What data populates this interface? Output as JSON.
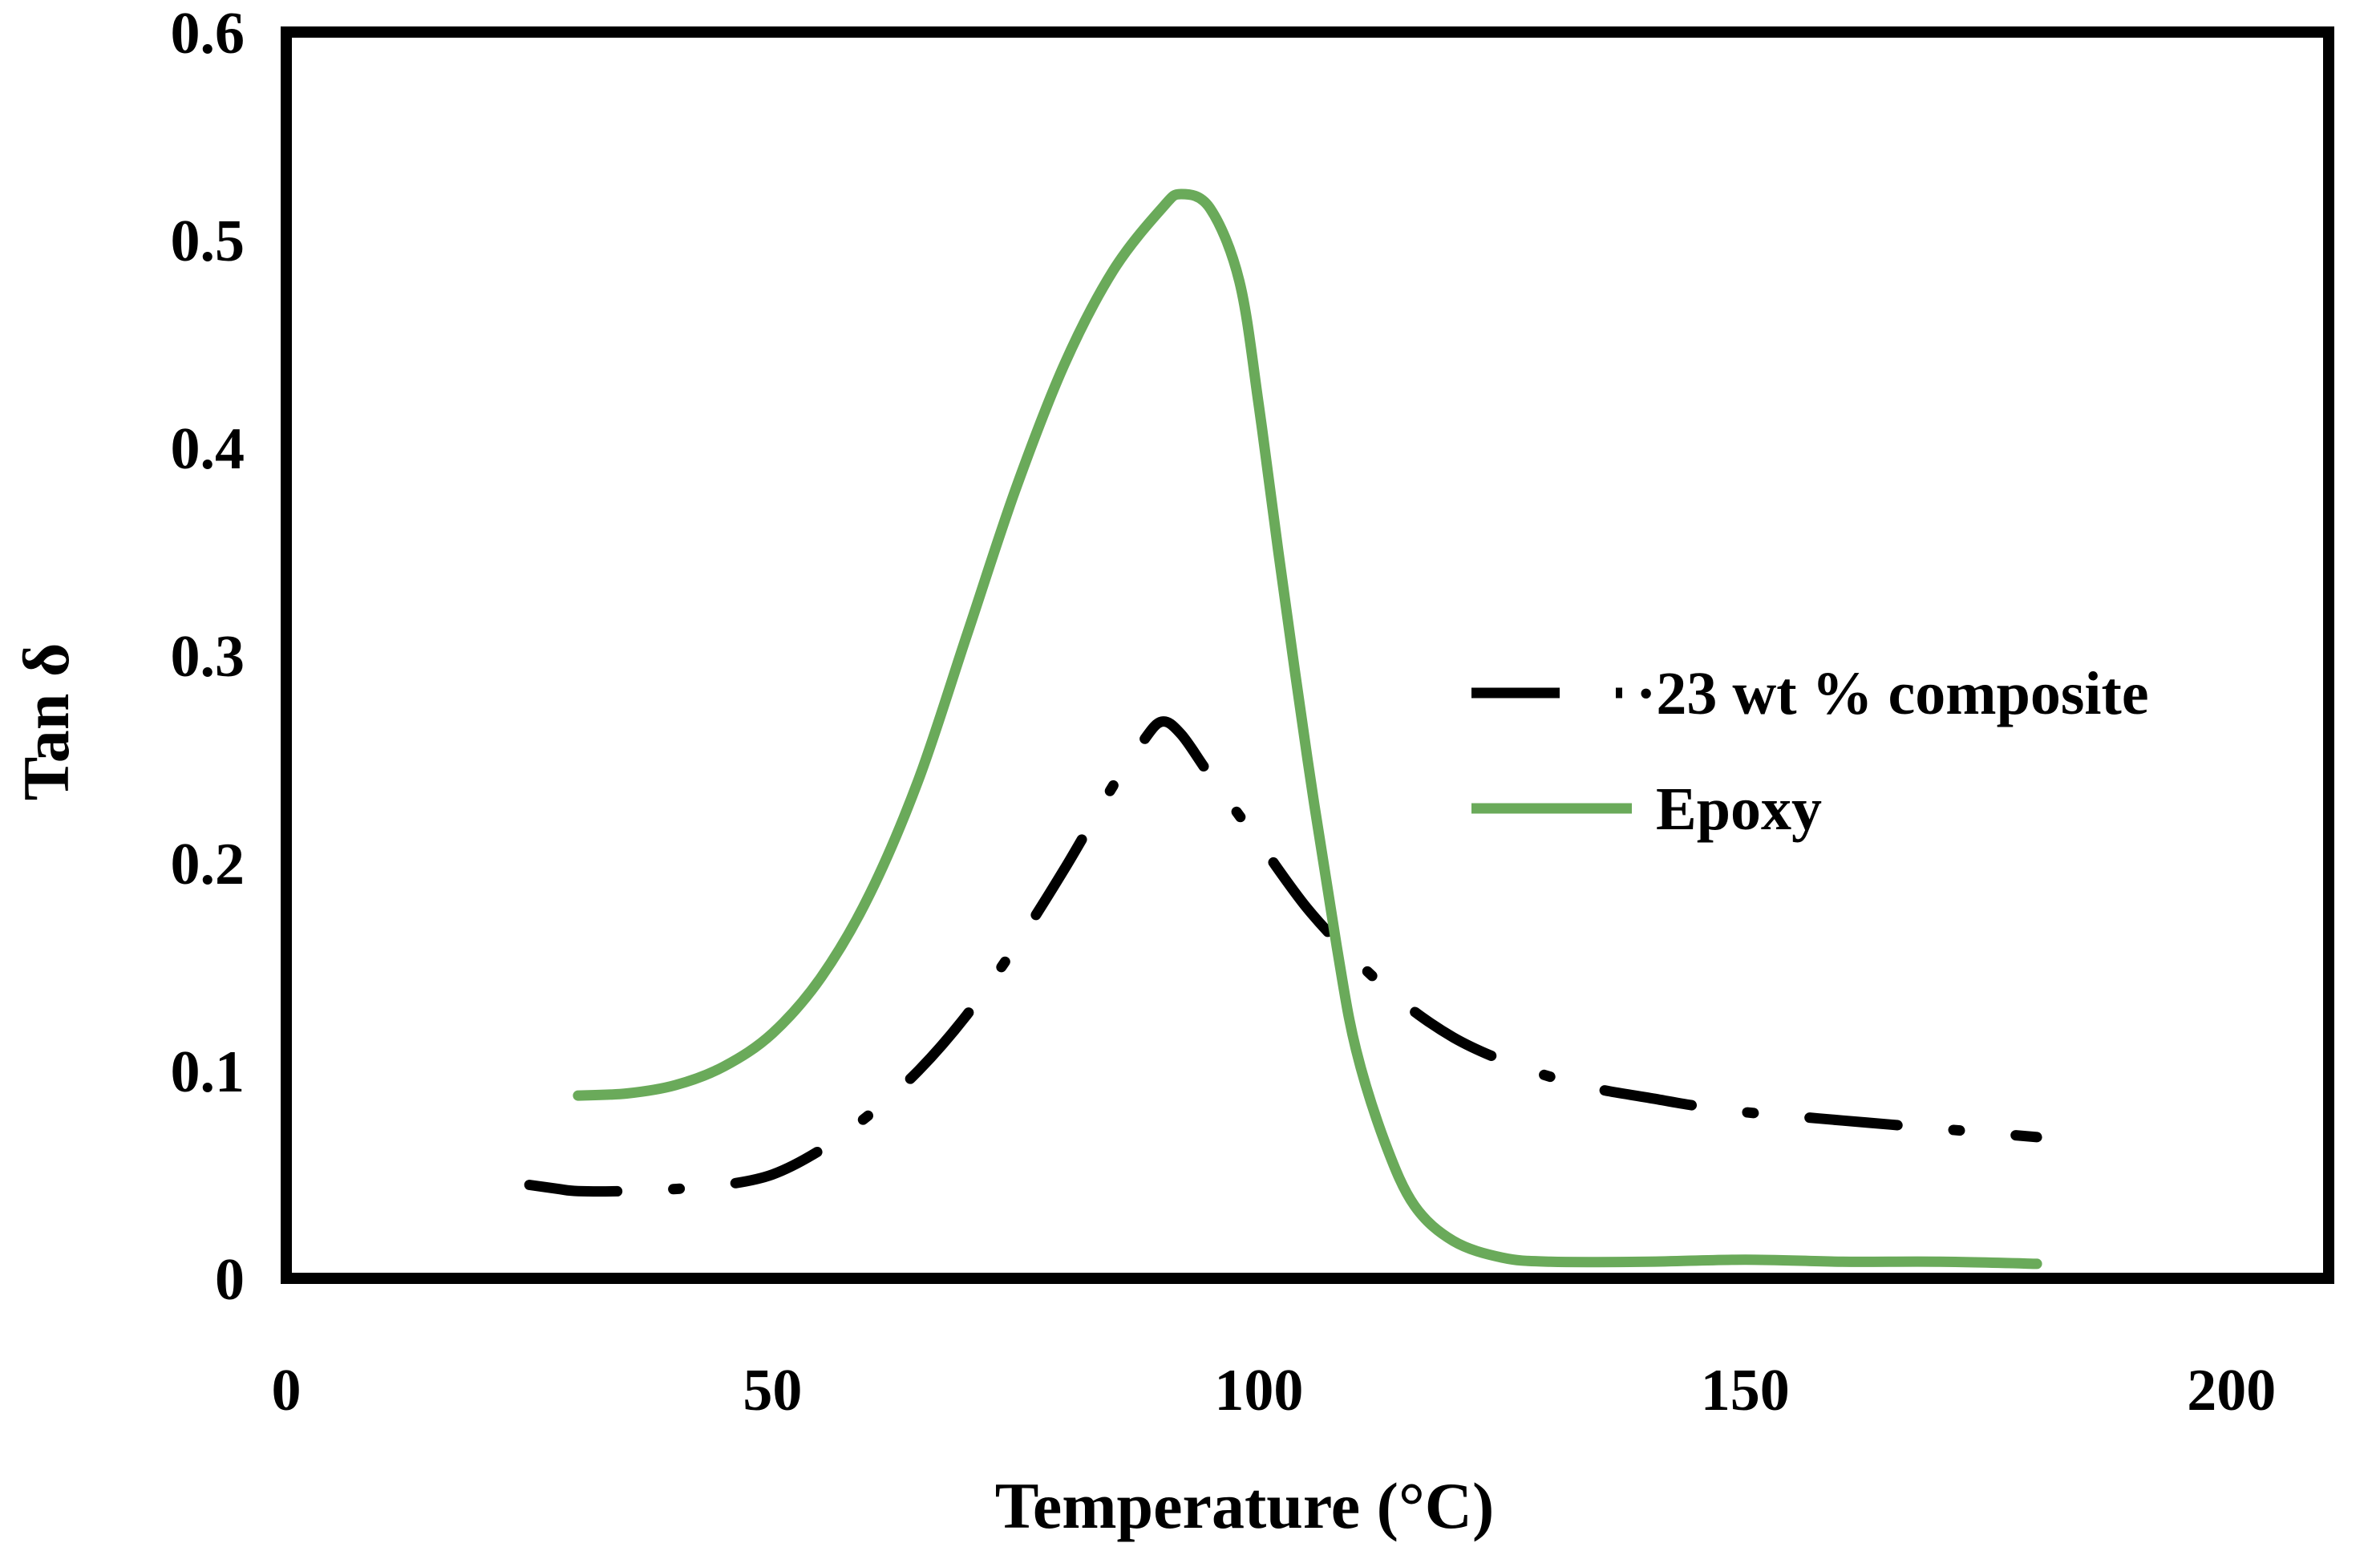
{
  "chart_data": {
    "type": "line",
    "title": "",
    "xlabel": "Temperature (°C)",
    "ylabel": "Tan δ",
    "xlim": [
      0,
      210
    ],
    "ylim": [
      0,
      0.6
    ],
    "x_ticks": [
      0,
      50,
      100,
      150,
      200
    ],
    "x_tick_labels": [
      "0",
      "50",
      "100",
      "150",
      "200"
    ],
    "y_ticks": [
      0,
      0.1,
      0.2,
      0.3,
      0.4,
      0.5,
      0.6
    ],
    "y_tick_labels": [
      "0",
      "0.1",
      "0.2",
      "0.3",
      "0.4",
      "0.5",
      "0.6"
    ],
    "grid": false,
    "legend_position": "center-right",
    "series": [
      {
        "name": "·23 wt % composite",
        "color": "#000000",
        "style": "dash-dot",
        "x": [
          25,
          28,
          30,
          35,
          40,
          45,
          50,
          55,
          60,
          65,
          70,
          75,
          80,
          85,
          88,
          90,
          92,
          95,
          100,
          105,
          110,
          115,
          120,
          125,
          130,
          135,
          140,
          145,
          150,
          155,
          160,
          165,
          170,
          175,
          180
        ],
        "values": [
          0.045,
          0.043,
          0.042,
          0.042,
          0.043,
          0.045,
          0.05,
          0.062,
          0.079,
          0.1,
          0.127,
          0.16,
          0.197,
          0.237,
          0.258,
          0.268,
          0.262,
          0.242,
          0.21,
          0.178,
          0.153,
          0.132,
          0.116,
          0.105,
          0.097,
          0.091,
          0.087,
          0.083,
          0.08,
          0.078,
          0.076,
          0.074,
          0.072,
          0.07,
          0.068
        ]
      },
      {
        "name": "Epoxy",
        "color": "#6aaa5a",
        "style": "solid",
        "x": [
          30,
          35,
          40,
          45,
          50,
          55,
          60,
          65,
          70,
          75,
          80,
          85,
          90,
          92,
          95,
          98,
          100,
          102,
          105,
          108,
          110,
          113,
          116,
          120,
          125,
          130,
          140,
          150,
          160,
          170,
          180
        ],
        "values": [
          0.088,
          0.089,
          0.093,
          0.102,
          0.118,
          0.145,
          0.185,
          0.24,
          0.31,
          0.38,
          0.44,
          0.485,
          0.515,
          0.522,
          0.515,
          0.48,
          0.42,
          0.35,
          0.25,
          0.16,
          0.11,
          0.065,
          0.035,
          0.018,
          0.01,
          0.008,
          0.008,
          0.009,
          0.008,
          0.008,
          0.007
        ]
      }
    ]
  }
}
